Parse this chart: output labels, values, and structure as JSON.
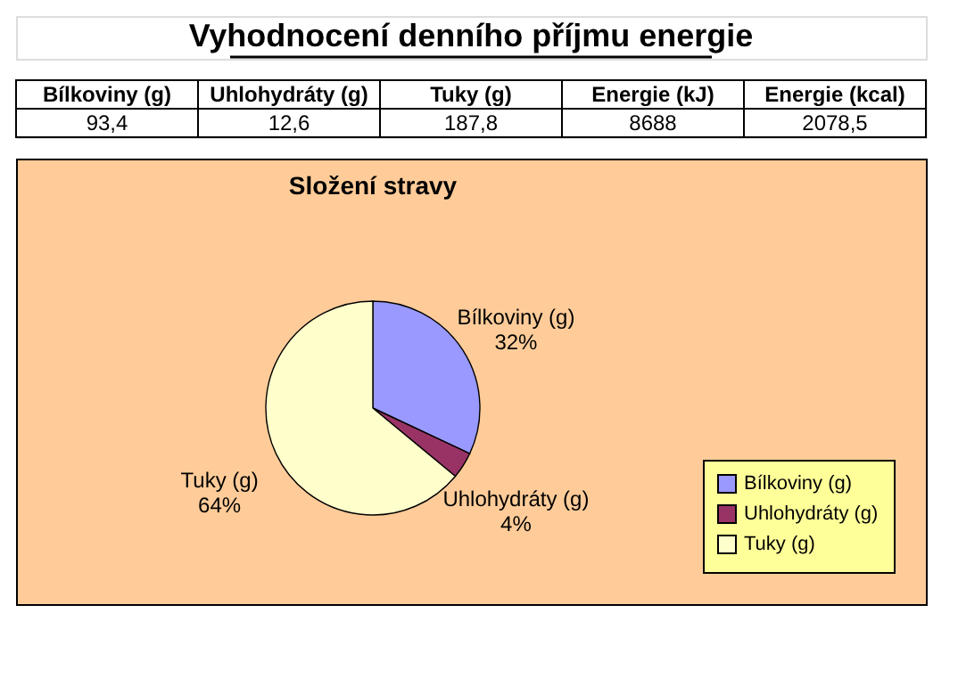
{
  "chart_data": {
    "type": "pie",
    "title": "Vyhodnocení denního příjmu energie",
    "subtitle": "Složení stravy",
    "annotations": [
      "Bílkoviny (g)",
      "Uhlohydráty (g)",
      "Tuky (g)",
      "Energie (kJ)",
      "Energie (kcal)",
      "93,4",
      "12,6",
      "187,8",
      "8688",
      "2078,5"
    ],
    "categories": [
      "Bílkoviny (g)",
      "Uhlohydráty (g)",
      "Tuky (g)"
    ],
    "values": [
      32,
      4,
      64
    ],
    "colors": [
      "#9999ff",
      "#993366",
      "#ffffcc"
    ],
    "value_labels": [
      "32%",
      "4%",
      "64%"
    ],
    "legend": "bottom right"
  }
}
